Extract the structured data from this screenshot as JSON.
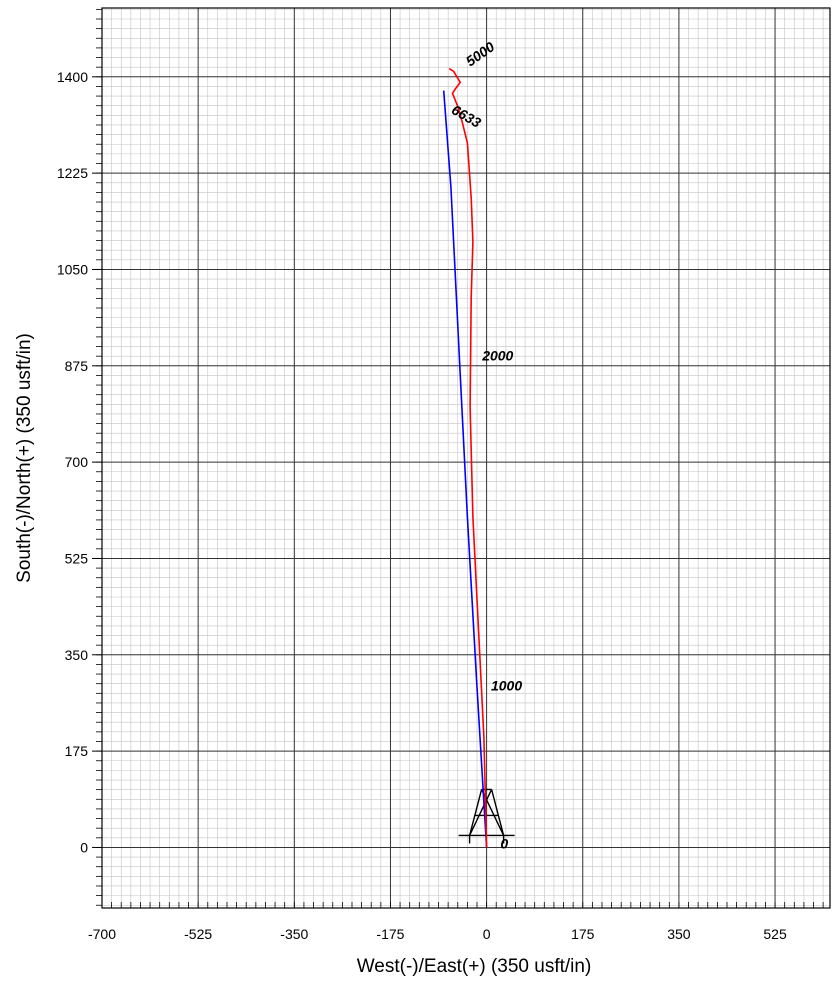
{
  "chart_data": {
    "type": "line",
    "xlabel": "West(-)/East(+) (350 usft/in)",
    "ylabel": "South(-)/North(+) (350 usft/in)",
    "xlim": [
      -700,
      625
    ],
    "ylim": [
      -110,
      1525
    ],
    "x_ticks": [
      -700,
      -525,
      -350,
      -175,
      0,
      175,
      350,
      525
    ],
    "y_ticks": [
      0,
      175,
      350,
      525,
      700,
      875,
      1050,
      1225,
      1400
    ],
    "grid": true,
    "series": [
      {
        "color": "#0000ff",
        "x": [
          0,
          -18,
          -35,
          -50,
          -65,
          -78
        ],
        "y": [
          0,
          300,
          600,
          900,
          1200,
          1375
        ]
      },
      {
        "color": "#ff0000",
        "x": [
          0,
          -5,
          -15,
          -25,
          -30,
          -28,
          -25,
          -28,
          -35,
          -45,
          -52,
          -62,
          -57,
          -48,
          -60,
          -68
        ],
        "y": [
          0,
          200,
          400,
          600,
          800,
          1000,
          1100,
          1180,
          1280,
          1320,
          1345,
          1370,
          1378,
          1390,
          1410,
          1415
        ]
      }
    ],
    "annotations": [
      {
        "text": "0",
        "x": 25,
        "y": -2
      },
      {
        "text": "1000",
        "x": 8,
        "y": 285
      },
      {
        "text": "2000",
        "x": -8,
        "y": 885
      },
      {
        "text": "5000",
        "x": -30,
        "y": 1418
      },
      {
        "text": "6633",
        "x": -66,
        "y": 1335
      }
    ]
  }
}
